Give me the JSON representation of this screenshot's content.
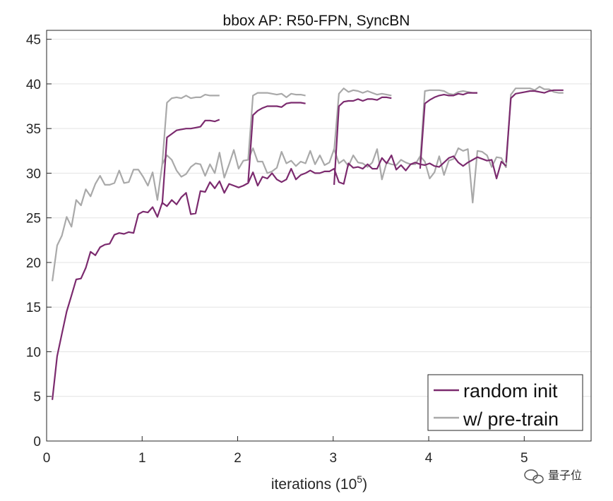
{
  "chart_data": {
    "type": "line",
    "title": "bbox AP: R50-FPN, SyncBN",
    "xlabel": "iterations (10",
    "xlabel_sup": "5",
    "xlabel_close": ")",
    "ylabel": "",
    "xlim": [
      0,
      5.7
    ],
    "ylim": [
      0,
      46
    ],
    "xticks": [
      0,
      1,
      2,
      3,
      4,
      5
    ],
    "xtick_labels": [
      "0",
      "1",
      "2",
      "3",
      "4",
      "5"
    ],
    "yticks": [
      0,
      5,
      10,
      15,
      20,
      25,
      30,
      35,
      40,
      45
    ],
    "ytick_labels": [
      "0",
      "5",
      "10",
      "15",
      "20",
      "25",
      "30",
      "35",
      "40",
      "45"
    ],
    "grid": "horizontal",
    "legend_position": "bottom-right",
    "series": [
      {
        "name": "random init",
        "color": "#7b2a6e",
        "segments": [
          {
            "x": [
              0.06,
              0.11,
              0.16,
              0.21,
              0.26,
              0.31,
              0.36,
              0.41,
              0.46,
              0.51,
              0.56,
              0.61,
              0.66,
              0.71,
              0.76,
              0.81,
              0.86,
              0.91,
              0.96,
              1.01,
              1.06,
              1.11,
              1.16,
              1.21,
              1.26,
              1.31,
              1.36,
              1.41,
              1.46,
              1.51,
              1.56,
              1.61,
              1.66,
              1.71,
              1.76,
              1.81,
              1.86,
              1.91,
              1.96,
              2.01,
              2.06,
              2.11,
              2.16,
              2.21,
              2.26,
              2.31,
              2.36,
              2.41,
              2.46,
              2.51,
              2.56,
              2.61,
              2.66,
              2.71,
              2.76,
              2.81,
              2.86,
              2.91,
              2.96,
              3.01,
              3.06,
              3.11,
              3.16,
              3.21,
              3.26,
              3.31,
              3.36,
              3.41,
              3.46,
              3.51,
              3.56,
              3.61,
              3.66,
              3.71,
              3.76,
              3.81,
              3.86,
              3.91,
              3.96,
              4.01,
              4.06,
              4.11,
              4.16,
              4.21,
              4.26,
              4.31,
              4.36,
              4.41,
              4.46,
              4.51,
              4.56,
              4.61,
              4.66,
              4.71,
              4.76,
              4.81
            ],
            "y": [
              4.6,
              9.5,
              12.0,
              14.5,
              16.3,
              18.1,
              18.2,
              19.4,
              21.2,
              20.8,
              21.7,
              22.0,
              22.1,
              23.1,
              23.3,
              23.2,
              23.4,
              23.3,
              25.4,
              25.7,
              25.6,
              26.2,
              25.1,
              26.7,
              26.3,
              27.0,
              26.5,
              27.3,
              27.8,
              25.4,
              25.5,
              28.0,
              27.9,
              29.0,
              28.3,
              29.1,
              27.8,
              28.8,
              28.6,
              28.4,
              28.6,
              28.9,
              30.1,
              28.6,
              29.6,
              29.4,
              30.0,
              29.3,
              29.0,
              29.3,
              30.5,
              29.3,
              29.8,
              30.0,
              30.3,
              30.0,
              30.0,
              30.2,
              30.2,
              30.5,
              29.0,
              28.8,
              31.1,
              30.6,
              30.7,
              30.5,
              31.0,
              30.5,
              30.5,
              31.7,
              31.1,
              32.0,
              30.4,
              30.9,
              30.3,
              31.0,
              31.2,
              31.0,
              30.9,
              31.1,
              30.8,
              30.7,
              31.2,
              31.7,
              31.9,
              31.2,
              30.8,
              31.2,
              31.5,
              31.8,
              31.6,
              31.4,
              31.5,
              29.4,
              31.3,
              30.8
            ]
          },
          {
            "x": [
              1.21,
              1.26,
              1.31,
              1.36,
              1.41,
              1.46,
              1.51,
              1.56,
              1.61,
              1.66,
              1.71,
              1.76,
              1.81
            ],
            "y": [
              26.5,
              34.0,
              34.4,
              34.8,
              34.9,
              35.0,
              35.0,
              35.1,
              35.2,
              35.9,
              35.9,
              35.8,
              36.0
            ]
          },
          {
            "x": [
              2.11,
              2.16,
              2.21,
              2.26,
              2.31,
              2.36,
              2.41,
              2.46,
              2.51,
              2.56,
              2.61,
              2.66,
              2.71
            ],
            "y": [
              29.0,
              36.5,
              37.0,
              37.3,
              37.5,
              37.5,
              37.5,
              37.4,
              37.8,
              37.9,
              37.9,
              37.9,
              37.8
            ]
          },
          {
            "x": [
              3.01,
              3.06,
              3.11,
              3.16,
              3.21,
              3.26,
              3.31,
              3.36,
              3.41,
              3.46,
              3.51,
              3.56,
              3.61
            ],
            "y": [
              28.7,
              37.5,
              38.0,
              38.1,
              38.1,
              38.3,
              38.1,
              38.3,
              38.3,
              38.2,
              38.5,
              38.5,
              38.4
            ]
          },
          {
            "x": [
              3.91,
              3.96,
              4.01,
              4.06,
              4.11,
              4.16,
              4.21,
              4.26,
              4.31,
              4.36,
              4.41,
              4.46,
              4.51
            ],
            "y": [
              30.5,
              37.8,
              38.2,
              38.5,
              38.7,
              38.8,
              38.7,
              38.7,
              38.9,
              38.8,
              39.0,
              39.0,
              39.0
            ]
          },
          {
            "x": [
              4.81,
              4.86,
              4.91,
              4.96,
              5.01,
              5.06,
              5.11,
              5.16,
              5.21,
              5.26,
              5.31,
              5.36,
              5.41
            ],
            "y": [
              31.2,
              38.4,
              38.9,
              39.0,
              39.1,
              39.2,
              39.2,
              39.1,
              39.0,
              39.2,
              39.3,
              39.3,
              39.3
            ]
          }
        ]
      },
      {
        "name": "w/ pre-train",
        "color": "#a9a9a9",
        "segments": [
          {
            "x": [
              0.06,
              0.11,
              0.16,
              0.21,
              0.26,
              0.31,
              0.36,
              0.41,
              0.46,
              0.51,
              0.56,
              0.61,
              0.66,
              0.71,
              0.76,
              0.81,
              0.86,
              0.91,
              0.96,
              1.01,
              1.06,
              1.11,
              1.16,
              1.21,
              1.26,
              1.31,
              1.36,
              1.41,
              1.46,
              1.51,
              1.56,
              1.61,
              1.66,
              1.71,
              1.76,
              1.81,
              1.86,
              1.91,
              1.96,
              2.01,
              2.06,
              2.11,
              2.16,
              2.21,
              2.26,
              2.31,
              2.36,
              2.41,
              2.46,
              2.51,
              2.56,
              2.61,
              2.66,
              2.71,
              2.76,
              2.81,
              2.86,
              2.91,
              2.96,
              3.01,
              3.06,
              3.11,
              3.16,
              3.21,
              3.26,
              3.31,
              3.36,
              3.41,
              3.46,
              3.51,
              3.56,
              3.61,
              3.66,
              3.71,
              3.76,
              3.81,
              3.86,
              3.91,
              3.96,
              4.01,
              4.06,
              4.11,
              4.16,
              4.21,
              4.26,
              4.31,
              4.36,
              4.41,
              4.46,
              4.51,
              4.56,
              4.61,
              4.66,
              4.71,
              4.76,
              4.81
            ],
            "y": [
              17.9,
              21.9,
              23.0,
              25.1,
              24.0,
              27.0,
              26.4,
              28.2,
              27.4,
              28.8,
              29.7,
              28.7,
              28.7,
              28.9,
              30.3,
              28.9,
              29.0,
              30.4,
              30.4,
              29.6,
              28.6,
              30.1,
              27.0,
              31.0,
              32.0,
              31.5,
              30.3,
              29.6,
              29.9,
              30.7,
              31.1,
              31.0,
              29.7,
              31.0,
              30.0,
              32.3,
              29.5,
              31.0,
              32.6,
              30.5,
              31.4,
              31.5,
              32.8,
              31.3,
              31.3,
              30.0,
              30.2,
              30.6,
              32.4,
              31.1,
              31.4,
              30.8,
              31.3,
              31.1,
              32.5,
              31.0,
              32.0,
              30.9,
              31.2,
              32.7,
              31.1,
              31.5,
              30.8,
              32.0,
              31.2,
              31.1,
              30.7,
              31.2,
              32.7,
              29.3,
              31.2,
              31.0,
              30.9,
              31.5,
              31.2,
              31.0,
              31.0,
              31.9,
              31.3,
              29.4,
              30.1,
              31.9,
              29.8,
              31.4,
              31.6,
              32.8,
              32.5,
              32.7,
              26.7,
              32.5,
              32.4,
              32.0,
              30.7,
              31.8,
              31.7,
              30.6
            ]
          },
          {
            "x": [
              1.21,
              1.26,
              1.31,
              1.36,
              1.41,
              1.46,
              1.51,
              1.56,
              1.61,
              1.66,
              1.71,
              1.76,
              1.81
            ],
            "y": [
              31.0,
              37.9,
              38.4,
              38.5,
              38.4,
              38.7,
              38.4,
              38.5,
              38.5,
              38.8,
              38.7,
              38.7,
              38.7
            ]
          },
          {
            "x": [
              2.11,
              2.16,
              2.21,
              2.26,
              2.31,
              2.36,
              2.41,
              2.46,
              2.51,
              2.56,
              2.61,
              2.66,
              2.71
            ],
            "y": [
              31.5,
              38.7,
              39.0,
              39.0,
              39.0,
              38.9,
              38.8,
              38.9,
              38.5,
              38.9,
              38.8,
              38.8,
              38.7
            ]
          },
          {
            "x": [
              3.01,
              3.06,
              3.11,
              3.16,
              3.21,
              3.26,
              3.31,
              3.36,
              3.41,
              3.46,
              3.51,
              3.56,
              3.61
            ],
            "y": [
              32.5,
              38.9,
              39.5,
              39.1,
              39.3,
              39.2,
              39.0,
              39.2,
              39.0,
              38.8,
              38.9,
              38.8,
              38.7
            ]
          },
          {
            "x": [
              3.91,
              3.96,
              4.01,
              4.06,
              4.11,
              4.16,
              4.21,
              4.26,
              4.31,
              4.36,
              4.41,
              4.46,
              4.51
            ],
            "y": [
              31.3,
              39.2,
              39.3,
              39.3,
              39.3,
              39.2,
              38.9,
              38.8,
              39.1,
              39.2,
              39.1,
              39.0,
              39.0
            ]
          },
          {
            "x": [
              4.81,
              4.86,
              4.91,
              4.96,
              5.01,
              5.06,
              5.11,
              5.16,
              5.21,
              5.26,
              5.31,
              5.36,
              5.41
            ],
            "y": [
              30.6,
              38.8,
              39.5,
              39.5,
              39.5,
              39.5,
              39.3,
              39.7,
              39.4,
              39.4,
              39.1,
              39.0,
              39.0
            ]
          }
        ]
      }
    ]
  },
  "watermark": {
    "text": "量子位"
  }
}
